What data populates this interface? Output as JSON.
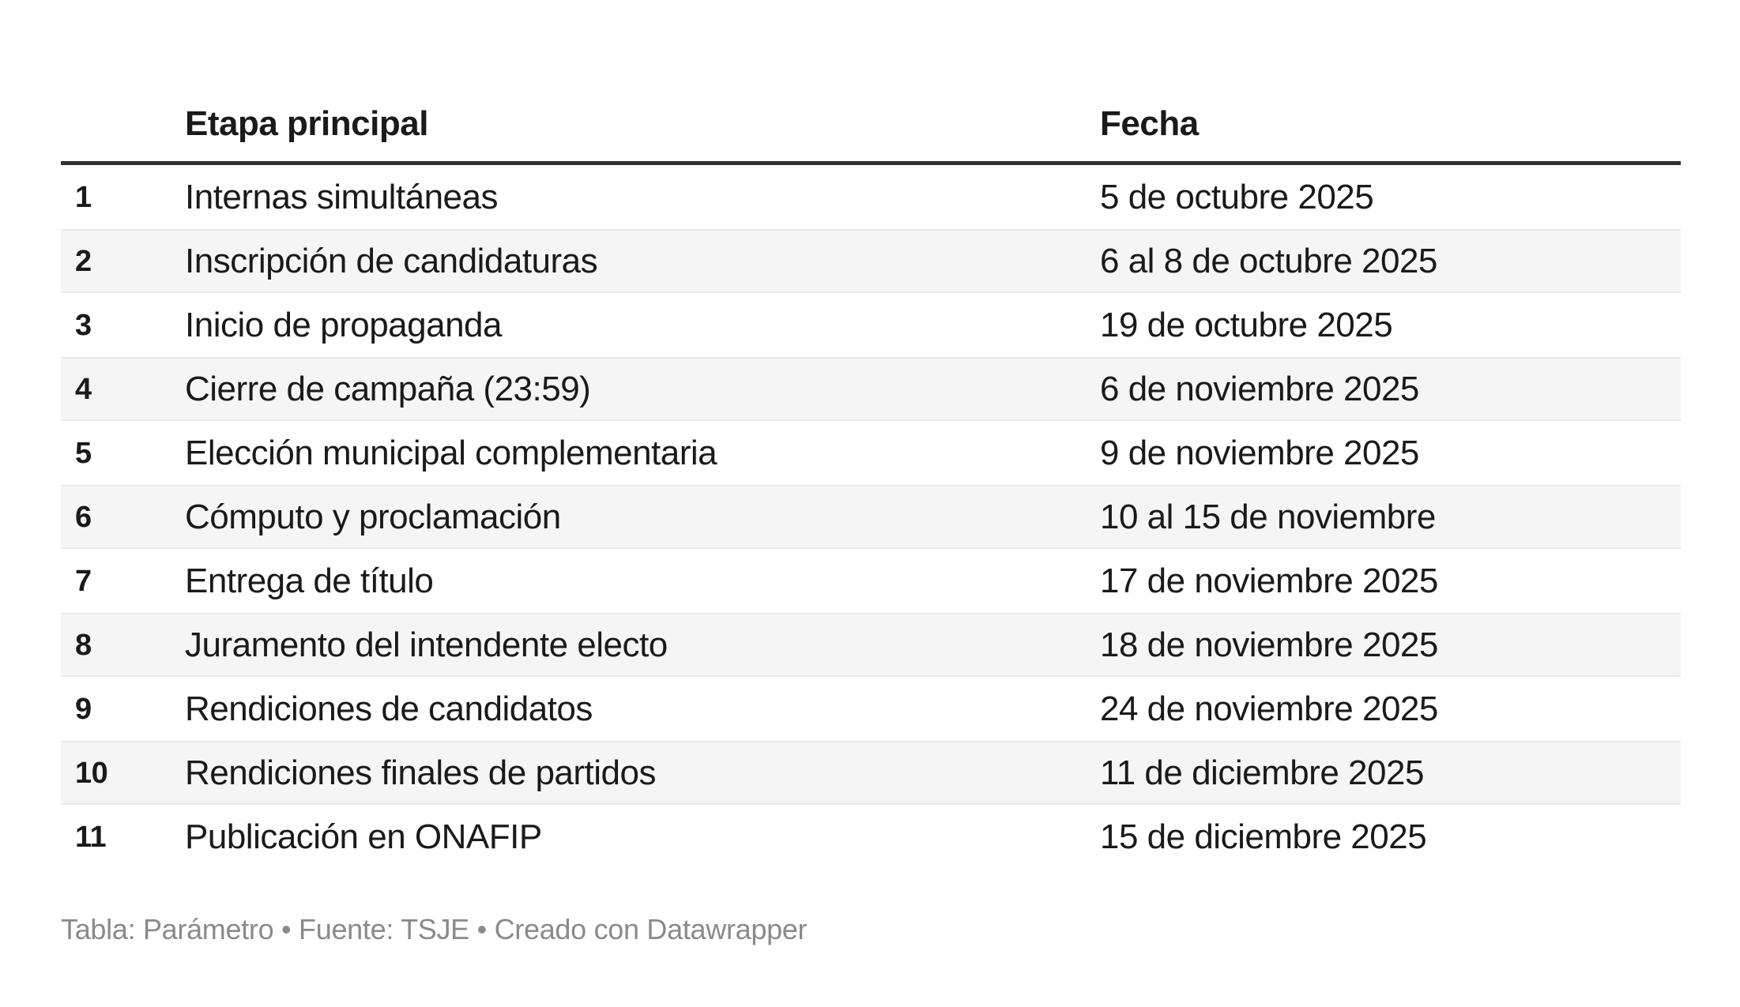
{
  "colors": {
    "background": "#ffffff",
    "text": "#1a1a1a",
    "header_rule": "#303030",
    "row_stripe": "#f5f5f5",
    "row_divider": "#e9e9e9",
    "footer_text": "#8a8a8a"
  },
  "chart_data": {
    "type": "table",
    "columns": [
      "",
      "Etapa principal",
      "Fecha"
    ],
    "rows": [
      [
        "1",
        "Internas simultáneas",
        "5 de octubre 2025"
      ],
      [
        "2",
        "Inscripción de candidaturas",
        "6 al 8 de octubre 2025"
      ],
      [
        "3",
        "Inicio de propaganda",
        "19 de octubre 2025"
      ],
      [
        "4",
        "Cierre de campaña (23:59)",
        "6 de noviembre 2025"
      ],
      [
        "5",
        "Elección municipal complementaria",
        "9 de noviembre 2025"
      ],
      [
        "6",
        "Cómputo y proclamación",
        "10 al 15 de noviembre"
      ],
      [
        "7",
        "Entrega de título",
        "17 de noviembre 2025"
      ],
      [
        "8",
        "Juramento del intendente electo",
        "18 de noviembre 2025"
      ],
      [
        "9",
        "Rendiciones de candidatos",
        "24 de noviembre 2025"
      ],
      [
        "10",
        "Rendiciones finales de partidos",
        "11 de diciembre 2025"
      ],
      [
        "11",
        "Publicación en ONAFIP",
        "15 de diciembre 2025"
      ]
    ],
    "row_numbers": true,
    "striped": true,
    "attribution": "Tabla: Parámetro • Fuente: TSJE • Creado con Datawrapper"
  }
}
